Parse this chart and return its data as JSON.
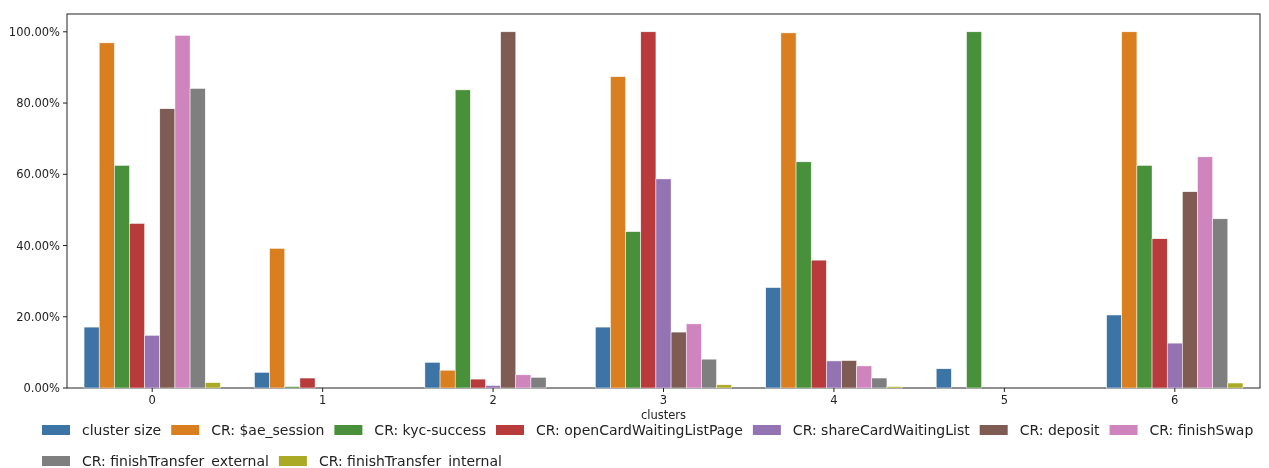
{
  "chart_data": {
    "type": "bar",
    "xlabel": "clusters",
    "categories": [
      "0",
      "1",
      "2",
      "3",
      "4",
      "5",
      "6"
    ],
    "series": [
      {
        "name": "cluster size",
        "color": "#3d74a6",
        "values": [
          17.1,
          4.4,
          7.2,
          17.1,
          28.2,
          5.4,
          20.5
        ]
      },
      {
        "name": "CR: $ae_session",
        "color": "#da7f1f",
        "values": [
          96.9,
          39.2,
          5.0,
          87.4,
          99.7,
          0,
          100
        ]
      },
      {
        "name": "CR: kyc-success",
        "color": "#48913a",
        "values": [
          62.5,
          0.4,
          83.7,
          43.9,
          63.5,
          100,
          62.5
        ]
      },
      {
        "name": "CR: openCardWaitingListPage",
        "color": "#b83a3b",
        "values": [
          46.2,
          2.8,
          2.5,
          100,
          35.9,
          0,
          41.9
        ]
      },
      {
        "name": "CR: shareCardWaitingList",
        "color": "#9473b3",
        "values": [
          14.8,
          0,
          0.7,
          58.7,
          7.6,
          0,
          12.6
        ]
      },
      {
        "name": "CR: deposit",
        "color": "#7f5c53",
        "values": [
          78.4,
          0,
          100,
          15.7,
          7.7,
          0,
          55.1
        ]
      },
      {
        "name": "CR: finishSwap",
        "color": "#cf84bd",
        "values": [
          99.0,
          0,
          3.7,
          18.0,
          6.2,
          0,
          64.9
        ]
      },
      {
        "name": "CR: finishTransfer_external",
        "color": "#7f7f7f",
        "values": [
          84.1,
          0,
          3.0,
          8.1,
          2.8,
          0,
          47.5
        ]
      },
      {
        "name": "CR: finishTransfer_internal",
        "color": "#aaaa27",
        "values": [
          1.5,
          0,
          0,
          0.9,
          0.4,
          0,
          1.4
        ]
      }
    ],
    "ylim": [
      0,
      105
    ],
    "yticks": [
      {
        "value": 0,
        "label": "0.00%"
      },
      {
        "value": 20,
        "label": "20.00%"
      },
      {
        "value": 40,
        "label": "40.00%"
      },
      {
        "value": 60,
        "label": "60.00%"
      },
      {
        "value": 80,
        "label": "80.00%"
      },
      {
        "value": 100,
        "label": "100.00%"
      }
    ],
    "grid": false,
    "legend": "bottom"
  }
}
